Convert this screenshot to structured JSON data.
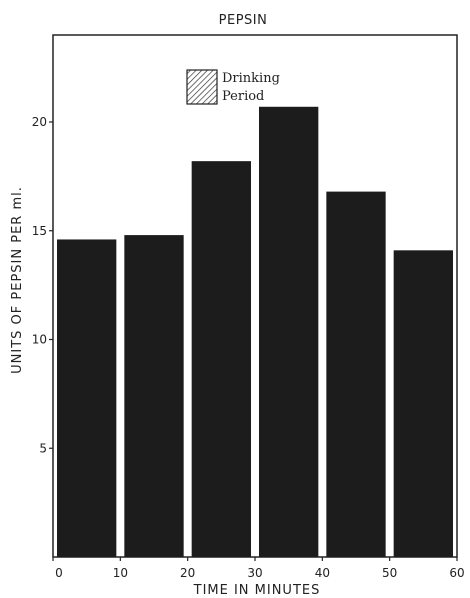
{
  "chart_data": {
    "type": "bar",
    "title": "PEPSIN",
    "xlabel": "TIME IN MINUTES",
    "ylabel": "UNITS OF PEPSIN PER ml.",
    "x_bins": [
      [
        0,
        10
      ],
      [
        10,
        20
      ],
      [
        20,
        30
      ],
      [
        30,
        40
      ],
      [
        40,
        50
      ],
      [
        50,
        60
      ]
    ],
    "values": [
      14.6,
      14.8,
      18.2,
      20.7,
      16.8,
      14.1
    ],
    "xlim": [
      0,
      60
    ],
    "ylim": [
      0,
      24
    ],
    "x_ticks": [
      "0",
      "10",
      "20",
      "30",
      "40",
      "50",
      "60"
    ],
    "y_ticks": [
      "5",
      "10",
      "15",
      "20"
    ],
    "y_tick_values": [
      5,
      10,
      15,
      20
    ],
    "x_tick_values": [
      0,
      10,
      20,
      30,
      40,
      50,
      60
    ],
    "legend": {
      "label_line1": "Drinking",
      "label_line2": "Period",
      "pattern": "hatched"
    },
    "bar_color": "#1c1c1c",
    "grid": false
  }
}
